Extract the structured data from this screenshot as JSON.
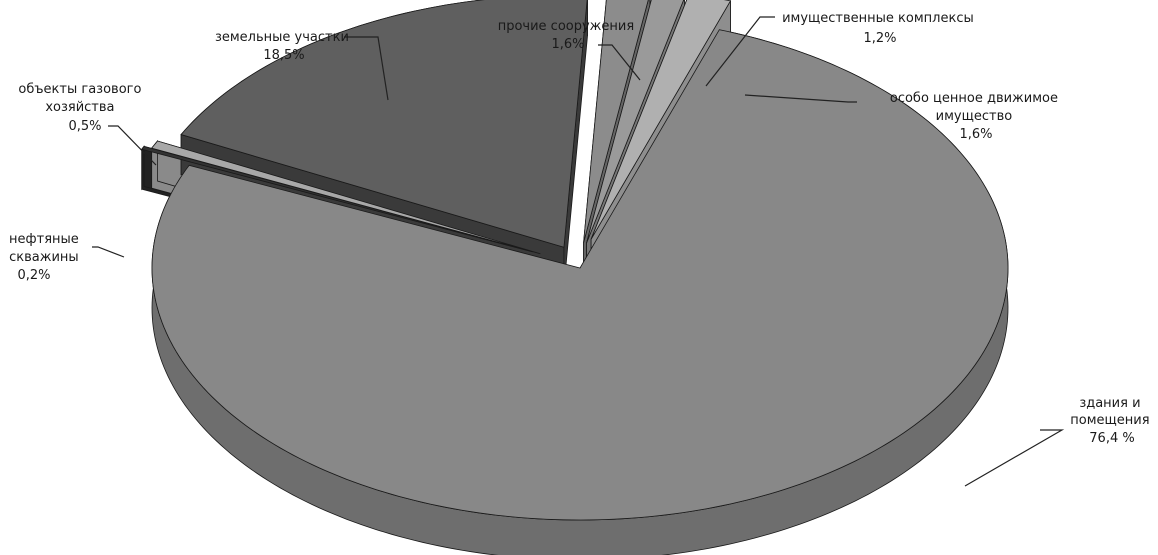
{
  "chart_data": {
    "type": "pie",
    "style": "3d-exploded",
    "slices": [
      {
        "key": "buildings",
        "label_lines": [
          "здания и",
          "помещения"
        ],
        "value_text": "76,4 %",
        "value": 76.4,
        "top": "#888888",
        "side": "#6e6e6e",
        "exploded": false
      },
      {
        "key": "oil",
        "label_lines": [
          "нефтяные",
          "скважины"
        ],
        "value_text": "0,2%",
        "value": 0.2,
        "top": "#333333",
        "side": "#222222",
        "exploded": true
      },
      {
        "key": "gas",
        "label_lines": [
          "объекты газового",
          "хозяйства"
        ],
        "value_text": "0,5%",
        "value": 0.5,
        "top": "#a8a8a8",
        "side": "#8a8a8a",
        "exploded": true
      },
      {
        "key": "land",
        "label_lines": [
          "земельные участки"
        ],
        "value_text": "18,5%",
        "value": 18.5,
        "top": "#5f5f5f",
        "side": "#3a3a3a",
        "exploded": true
      },
      {
        "key": "other",
        "label_lines": [
          "прочие сооружения"
        ],
        "value_text": "1,6%",
        "value": 1.6,
        "top": "#8c8c8c",
        "side": "#666666",
        "exploded": true
      },
      {
        "key": "complexes",
        "label_lines": [
          "имущественные комплексы"
        ],
        "value_text": "1,2%",
        "value": 1.2,
        "top": "#9a9a9a",
        "side": "#777777",
        "exploded": true
      },
      {
        "key": "movable",
        "label_lines": [
          "особо ценное движимое",
          "имущество"
        ],
        "value_text": "1,6%",
        "value": 1.6,
        "top": "#b0b0b0",
        "side": "#8e8e8e",
        "exploded": true
      }
    ]
  }
}
